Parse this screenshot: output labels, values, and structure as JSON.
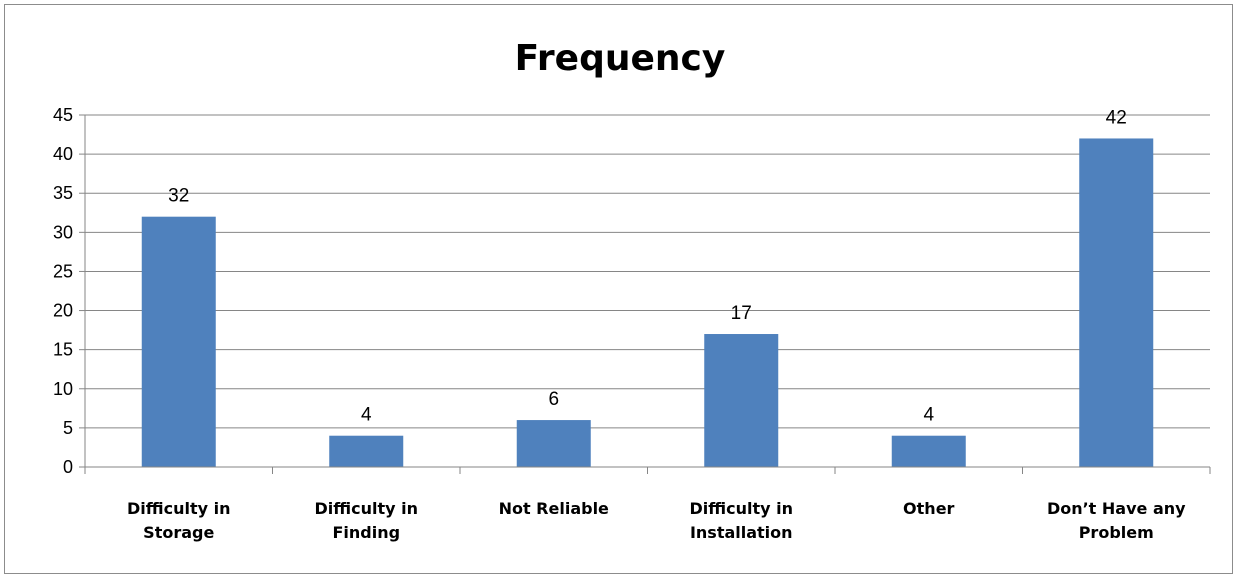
{
  "chart_data": {
    "type": "bar",
    "title": "Frequency",
    "categories": [
      [
        "Difficulty in",
        "Storage"
      ],
      [
        "Difficulty in",
        "Finding"
      ],
      [
        "Not Reliable"
      ],
      [
        "Difficulty in",
        "Installation"
      ],
      [
        "Other"
      ],
      [
        "Don’t Have any",
        "Problem"
      ]
    ],
    "values": [
      32,
      4,
      6,
      17,
      4,
      42
    ],
    "ylim": [
      0,
      45
    ],
    "yticks": [
      0,
      5,
      10,
      15,
      20,
      25,
      30,
      35,
      40,
      45
    ],
    "grid": true,
    "legend": "none",
    "colors": {
      "bar": "#4f81bd",
      "grid": "#868686",
      "axis": "#868686"
    }
  }
}
